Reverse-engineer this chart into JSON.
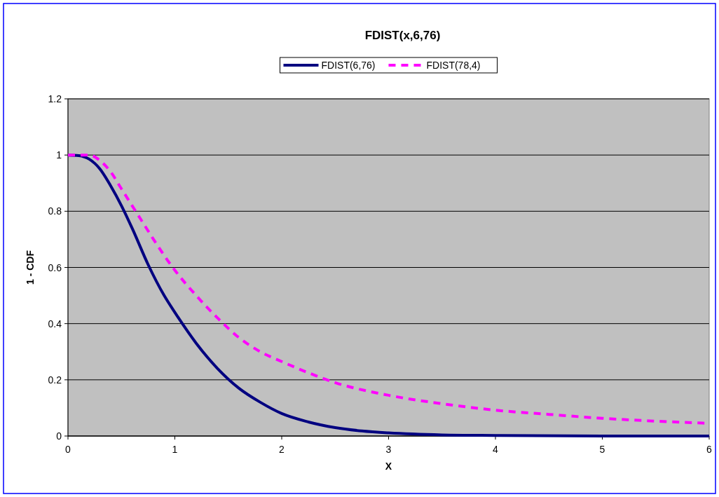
{
  "chart_data": {
    "type": "line",
    "title": "FDIST(x,6,76)",
    "xlabel": "X",
    "ylabel": "1 - CDF",
    "xlim": [
      0,
      6
    ],
    "xticks": [
      0,
      1,
      2,
      3,
      4,
      5,
      6
    ],
    "ylim": [
      0,
      1.2
    ],
    "yticks": [
      0,
      0.2,
      0.4,
      0.6,
      0.8,
      1,
      1.2
    ],
    "grid": "y",
    "legend": "top",
    "marker": "none",
    "series": [
      {
        "name": "FDIST(6,76)",
        "color": "#000080",
        "line_style": "solid",
        "x": [
          0,
          0.1,
          0.2,
          0.3,
          0.4,
          0.5,
          0.6,
          0.75,
          0.9,
          1,
          1.2,
          1.4,
          1.6,
          1.8,
          2,
          2.25,
          2.5,
          2.75,
          3,
          3.5,
          4,
          5,
          6
        ],
        "values": [
          1,
          0.998,
          0.985,
          0.95,
          0.89,
          0.82,
          0.74,
          0.61,
          0.5,
          0.44,
          0.33,
          0.24,
          0.17,
          0.12,
          0.08,
          0.05,
          0.03,
          0.018,
          0.011,
          0.004,
          0.002,
          0,
          0
        ]
      },
      {
        "name": "FDIST(78,4)",
        "color": "#ff00ff",
        "line_style": "dashed",
        "x": [
          0,
          0.1,
          0.2,
          0.3,
          0.4,
          0.5,
          0.6,
          0.7,
          0.8,
          1,
          1.2,
          1.4,
          1.6,
          1.8,
          2,
          2.25,
          2.5,
          3,
          3.5,
          4,
          4.5,
          5,
          5.5,
          6
        ],
        "values": [
          1,
          1,
          1,
          0.98,
          0.94,
          0.88,
          0.82,
          0.76,
          0.7,
          0.59,
          0.5,
          0.42,
          0.35,
          0.3,
          0.265,
          0.225,
          0.19,
          0.145,
          0.115,
          0.092,
          0.077,
          0.063,
          0.053,
          0.045
        ]
      }
    ]
  }
}
